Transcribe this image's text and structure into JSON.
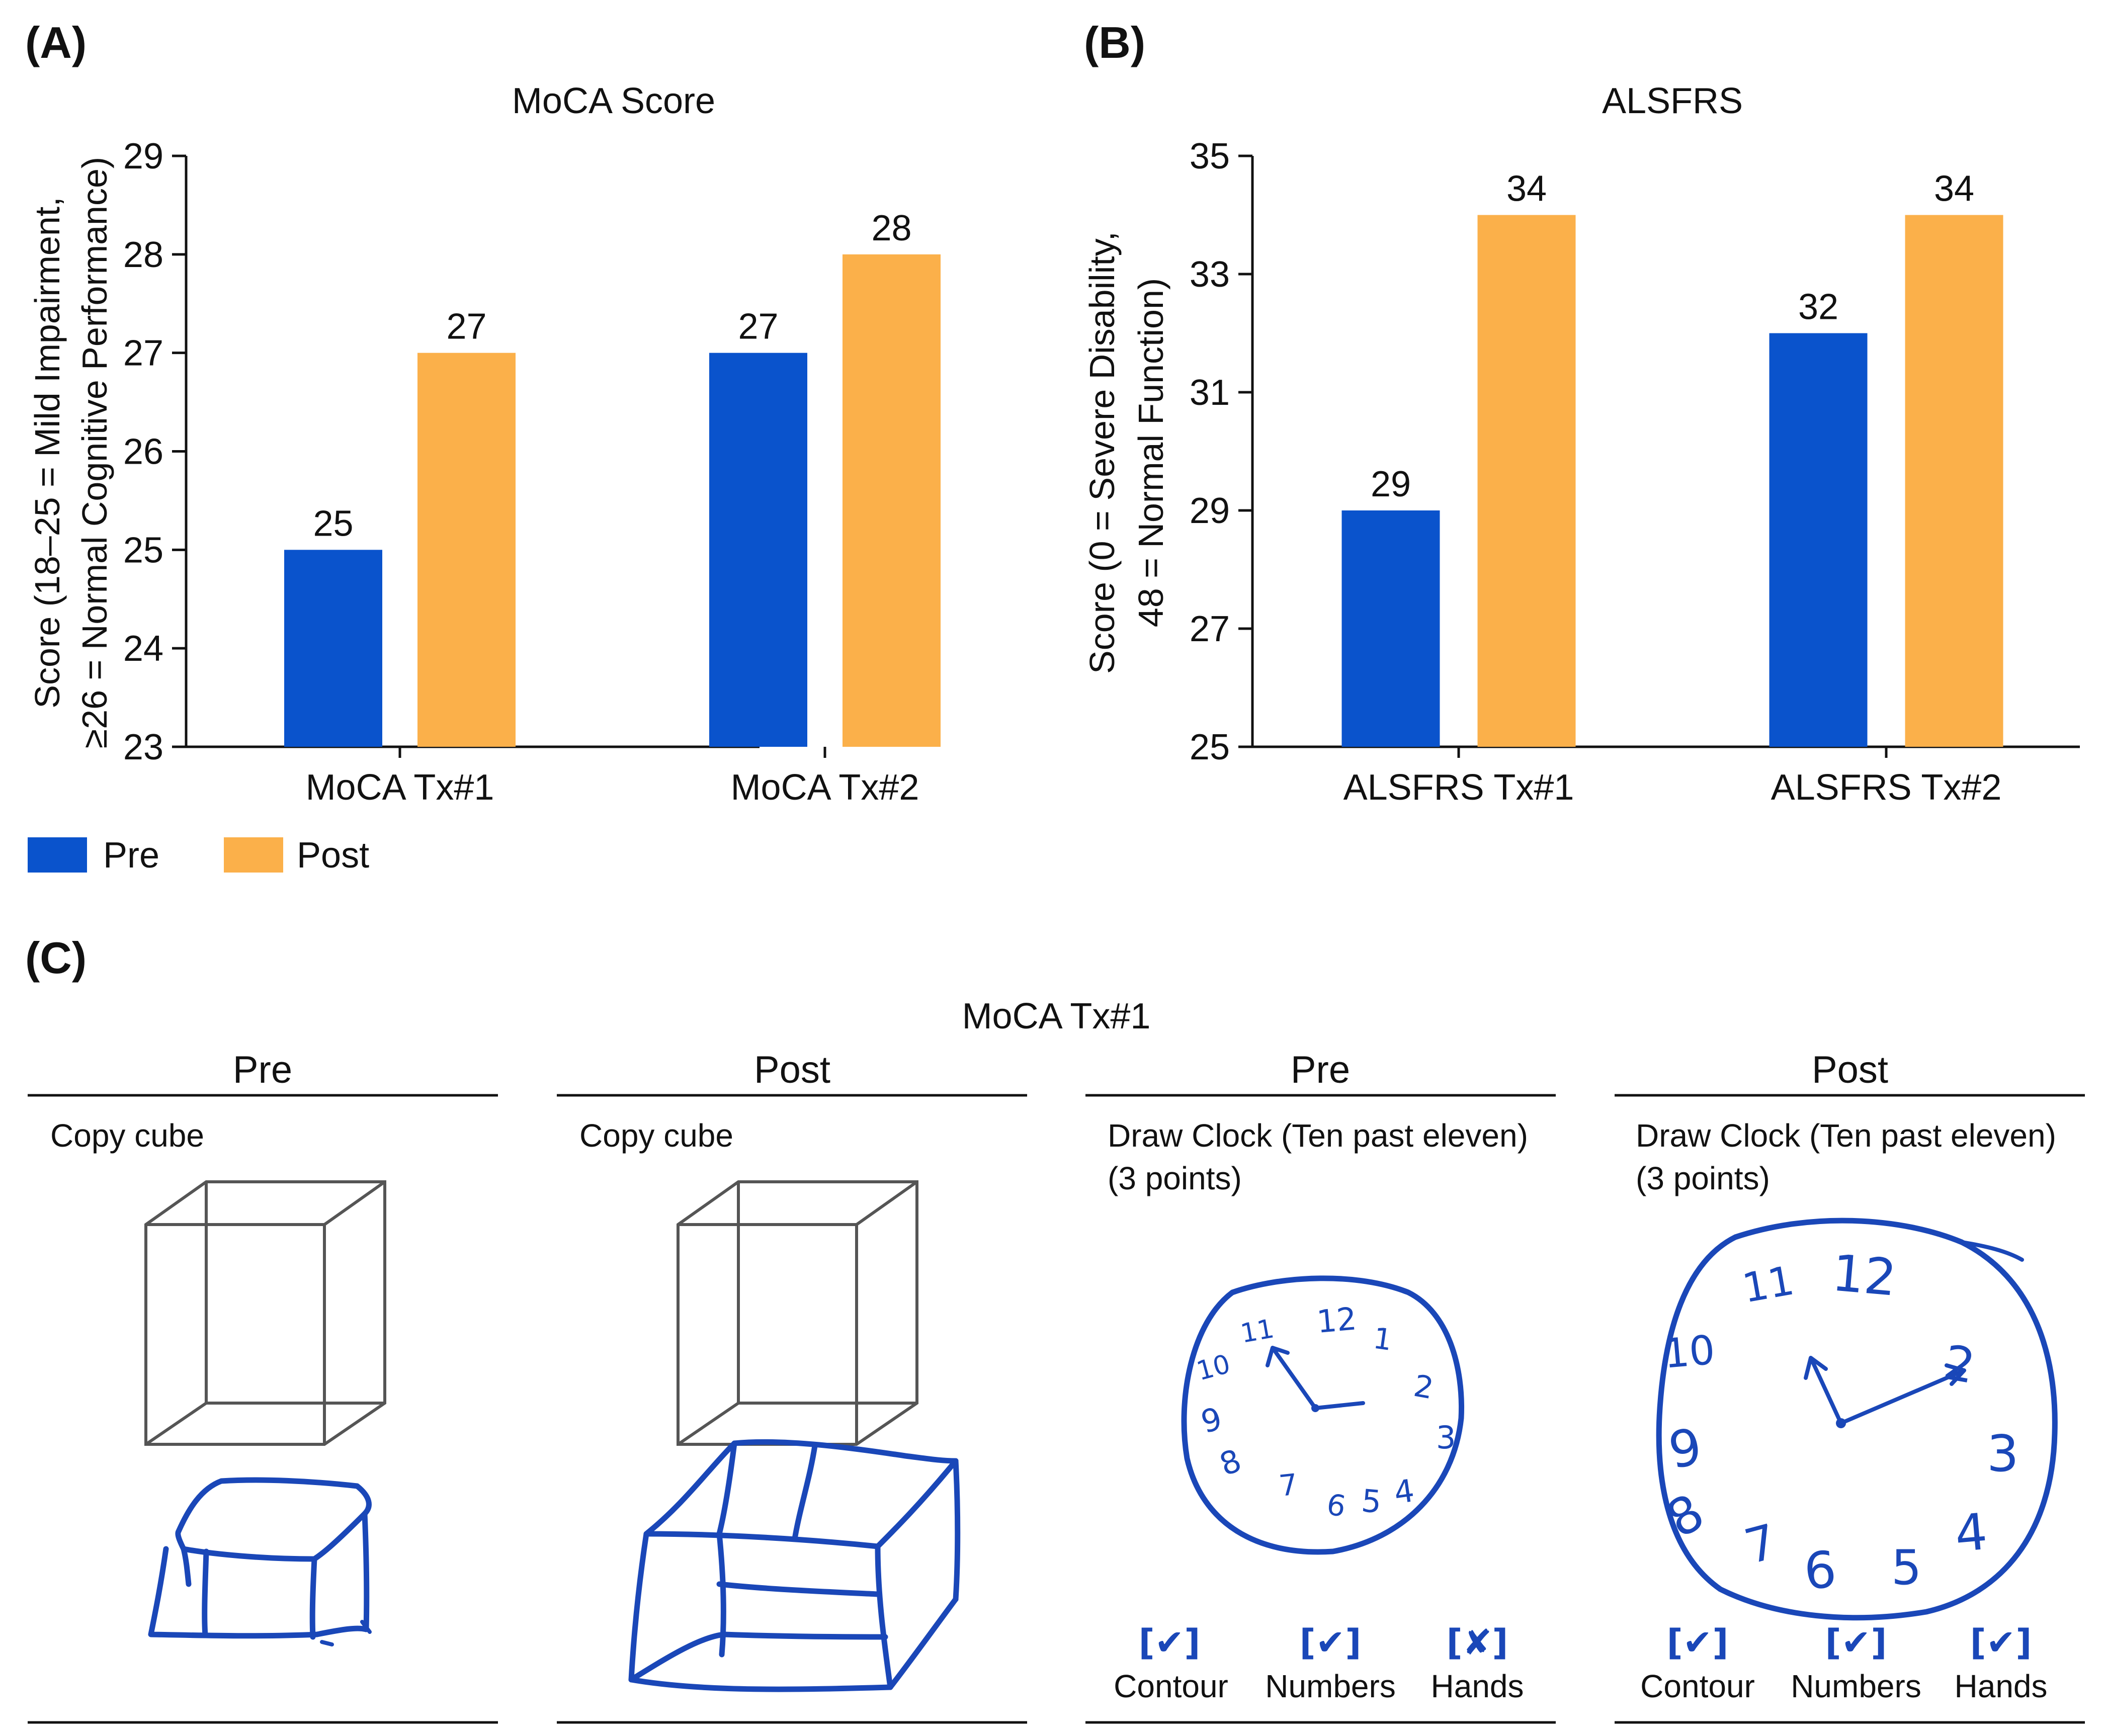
{
  "panels": {
    "a": "(A)",
    "b": "(B)",
    "c": "(C)"
  },
  "chart_data": [
    {
      "type": "bar",
      "title": "MoCA Score",
      "ylabel_line1": "Score (18–25 = Mild Impairment,",
      "ylabel_line2": "≥26 = Normal Cognitive Performance)",
      "categories": [
        "MoCA Tx#1",
        "MoCA Tx#2"
      ],
      "series": [
        {
          "name": "Pre",
          "values": [
            25,
            27
          ],
          "color": "#0a53cc"
        },
        {
          "name": "Post",
          "values": [
            27,
            28
          ],
          "color": "#fbb04a"
        }
      ],
      "value_labels": [
        [
          "25",
          "27"
        ],
        [
          "27",
          "28"
        ]
      ],
      "ylim": [
        23,
        29
      ],
      "yticks": [
        23,
        24,
        25,
        26,
        27,
        28,
        29
      ],
      "ytick_labels": [
        "23",
        "24",
        "25",
        "26",
        "27",
        "28",
        "29"
      ]
    },
    {
      "type": "bar",
      "title": "ALSFRS",
      "ylabel_line1": "Score (0 = Severe Disability,",
      "ylabel_line2": "48 = Normal Function)",
      "categories": [
        "ALSFRS Tx#1",
        "ALSFRS Tx#2"
      ],
      "series": [
        {
          "name": "Pre",
          "values": [
            29,
            32
          ],
          "color": "#0a53cc"
        },
        {
          "name": "Post",
          "values": [
            34,
            34
          ],
          "color": "#fbb04a"
        }
      ],
      "value_labels": [
        [
          "29",
          "34"
        ],
        [
          "32",
          "34"
        ]
      ],
      "ylim": [
        25,
        35
      ],
      "yticks": [
        25,
        27,
        29,
        31,
        33,
        35
      ],
      "ytick_labels": [
        "25",
        "27",
        "29",
        "31",
        "33",
        "35"
      ]
    }
  ],
  "legend": [
    {
      "label": "Pre",
      "color": "#0a53cc"
    },
    {
      "label": "Post",
      "color": "#fbb04a"
    }
  ],
  "panel_c": {
    "title": "MoCA Tx#1",
    "columns": [
      {
        "header": "Pre",
        "task": "Copy cube"
      },
      {
        "header": "Post",
        "task": "Copy cube"
      },
      {
        "header": "Pre",
        "task": "Draw Clock (Ten past eleven)",
        "task_line2": "(3 points)"
      },
      {
        "header": "Post",
        "task": "Draw Clock (Ten past eleven)",
        "task_line2": "(3 points)"
      }
    ],
    "criteria_labels": [
      "Contour",
      "Numbers",
      "Hands"
    ],
    "pre_marks": [
      "[✔]",
      "[✔]",
      "[✘]"
    ],
    "post_marks": [
      "[✔]",
      "[✔]",
      "[✔]"
    ],
    "pre_clock_numerals": [
      "12",
      "1",
      "2",
      "3",
      "4",
      "5",
      "6",
      "7",
      "8",
      "9",
      "10",
      "11"
    ],
    "post_clock_numerals": [
      "12",
      "2",
      "3",
      "4",
      "5",
      "6",
      "7",
      "8",
      "9",
      "10",
      "11"
    ]
  }
}
